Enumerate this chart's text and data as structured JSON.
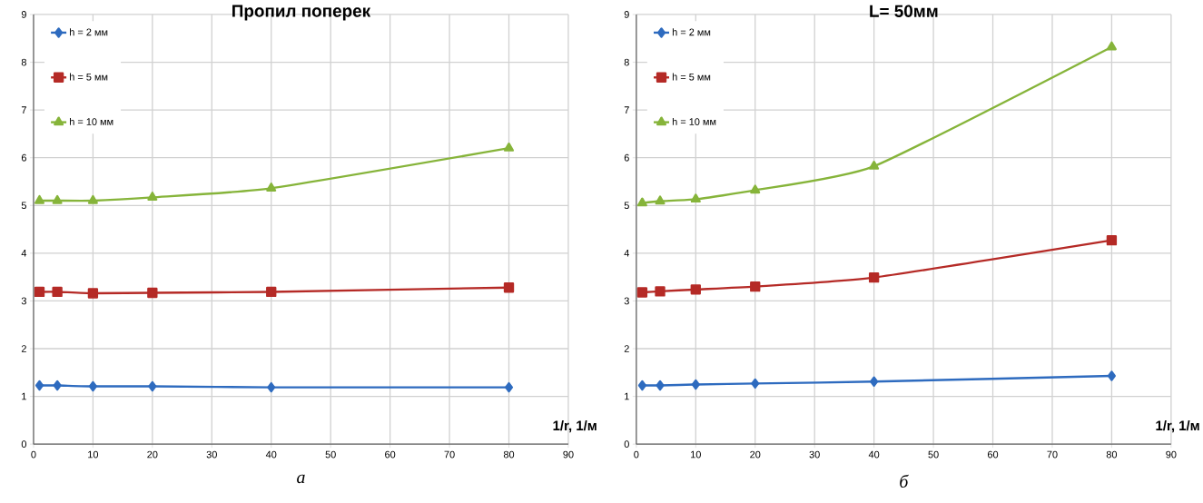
{
  "chart_data": [
    {
      "type": "line",
      "title": "Пропил поперек",
      "xlabel": "1/r, 1/м",
      "annotations": [
        "а"
      ],
      "x": [
        1,
        4,
        10,
        20,
        40,
        80
      ],
      "xlim": [
        0,
        90
      ],
      "ylim": [
        0,
        9
      ],
      "xticks": [
        0,
        10,
        20,
        30,
        40,
        50,
        60,
        70,
        80,
        90
      ],
      "yticks": [
        0,
        1,
        2,
        3,
        4,
        5,
        6,
        7,
        8,
        9
      ],
      "grid": true,
      "legend": "top left",
      "line_style": "solid",
      "series": [
        {
          "name": "h = 2 мм",
          "color": "#2e6bbf",
          "marker": "diamond",
          "values": [
            1.23,
            1.23,
            1.21,
            1.21,
            1.19,
            1.19
          ]
        },
        {
          "name": "h = 5 мм",
          "color": "#b52a26",
          "marker": "square",
          "values": [
            3.19,
            3.19,
            3.16,
            3.17,
            3.19,
            3.28
          ]
        },
        {
          "name": "h = 10 мм",
          "color": "#86b43a",
          "marker": "triangle",
          "values": [
            5.1,
            5.1,
            5.1,
            5.17,
            5.36,
            6.2
          ]
        }
      ]
    },
    {
      "type": "line",
      "title": "L= 50мм",
      "xlabel": "1/r, 1/м",
      "annotations": [
        "б"
      ],
      "x": [
        1,
        4,
        10,
        20,
        40,
        80
      ],
      "xlim": [
        0,
        90
      ],
      "ylim": [
        0,
        9
      ],
      "xticks": [
        0,
        10,
        20,
        30,
        40,
        50,
        60,
        70,
        80,
        90
      ],
      "yticks": [
        0,
        1,
        2,
        3,
        4,
        5,
        6,
        7,
        8,
        9
      ],
      "grid": true,
      "legend": "top left",
      "line_style": "solid",
      "series": [
        {
          "name": "h = 2 мм",
          "color": "#2e6bbf",
          "marker": "diamond",
          "values": [
            1.23,
            1.23,
            1.25,
            1.27,
            1.31,
            1.43
          ]
        },
        {
          "name": "h = 5 мм",
          "color": "#b52a26",
          "marker": "square",
          "values": [
            3.18,
            3.2,
            3.24,
            3.3,
            3.49,
            4.27
          ]
        },
        {
          "name": "h = 10 мм",
          "color": "#86b43a",
          "marker": "triangle",
          "values": [
            5.05,
            5.09,
            5.13,
            5.32,
            5.82,
            8.32
          ]
        }
      ]
    }
  ]
}
